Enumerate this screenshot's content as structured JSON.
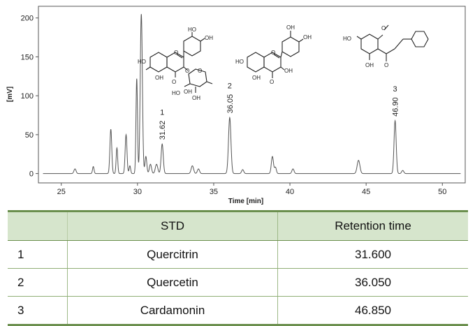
{
  "chart_data": {
    "type": "line",
    "xlabel": "Time [min]",
    "ylabel": "[mV]",
    "xlim": [
      23.5,
      51.5
    ],
    "ylim": [
      -12,
      215
    ],
    "x_ticks": [
      "25",
      "30",
      "35",
      "40",
      "45",
      "50"
    ],
    "y_ticks": [
      "0",
      "50",
      "100",
      "150",
      "200"
    ],
    "line_color": "#555555",
    "baseline": 0,
    "peaks": [
      {
        "t": 25.9,
        "h": 6,
        "w": 0.07
      },
      {
        "t": 27.1,
        "h": 9,
        "w": 0.05
      },
      {
        "t": 28.25,
        "h": 57,
        "w": 0.06
      },
      {
        "t": 28.65,
        "h": 33,
        "w": 0.05
      },
      {
        "t": 29.25,
        "h": 50,
        "w": 0.06
      },
      {
        "t": 29.5,
        "h": 10,
        "w": 0.05
      },
      {
        "t": 29.95,
        "h": 122,
        "w": 0.05
      },
      {
        "t": 30.25,
        "h": 205,
        "w": 0.07
      },
      {
        "t": 30.55,
        "h": 22,
        "w": 0.06
      },
      {
        "t": 30.85,
        "h": 12,
        "w": 0.07
      },
      {
        "t": 31.25,
        "h": 12,
        "w": 0.08
      },
      {
        "t": 31.62,
        "h": 38,
        "w": 0.07
      },
      {
        "t": 33.6,
        "h": 10,
        "w": 0.08
      },
      {
        "t": 34.0,
        "h": 6,
        "w": 0.07
      },
      {
        "t": 36.05,
        "h": 72,
        "w": 0.08
      },
      {
        "t": 36.9,
        "h": 5,
        "w": 0.07
      },
      {
        "t": 38.85,
        "h": 22,
        "w": 0.07
      },
      {
        "t": 39.05,
        "h": 8,
        "w": 0.06
      },
      {
        "t": 40.2,
        "h": 6,
        "w": 0.07
      },
      {
        "t": 44.5,
        "h": 17,
        "w": 0.09
      },
      {
        "t": 46.9,
        "h": 68,
        "w": 0.07
      },
      {
        "t": 47.4,
        "h": 4,
        "w": 0.07
      }
    ],
    "peak_labels": [
      {
        "number": "1",
        "time": "31.62",
        "t": 31.62,
        "h": 38
      },
      {
        "number": "2",
        "time": "36.05",
        "t": 36.05,
        "h": 72
      },
      {
        "number": "3",
        "time": "46.90",
        "t": 46.9,
        "h": 68
      }
    ]
  },
  "table": {
    "headers": [
      "STD",
      "Retention time"
    ],
    "rows": [
      {
        "index": "1",
        "std": "Quercitrin",
        "rt": "31.600"
      },
      {
        "index": "2",
        "std": "Quercetin",
        "rt": "36.050"
      },
      {
        "index": "3",
        "std": "Cardamonin",
        "rt": "46.850"
      }
    ]
  }
}
